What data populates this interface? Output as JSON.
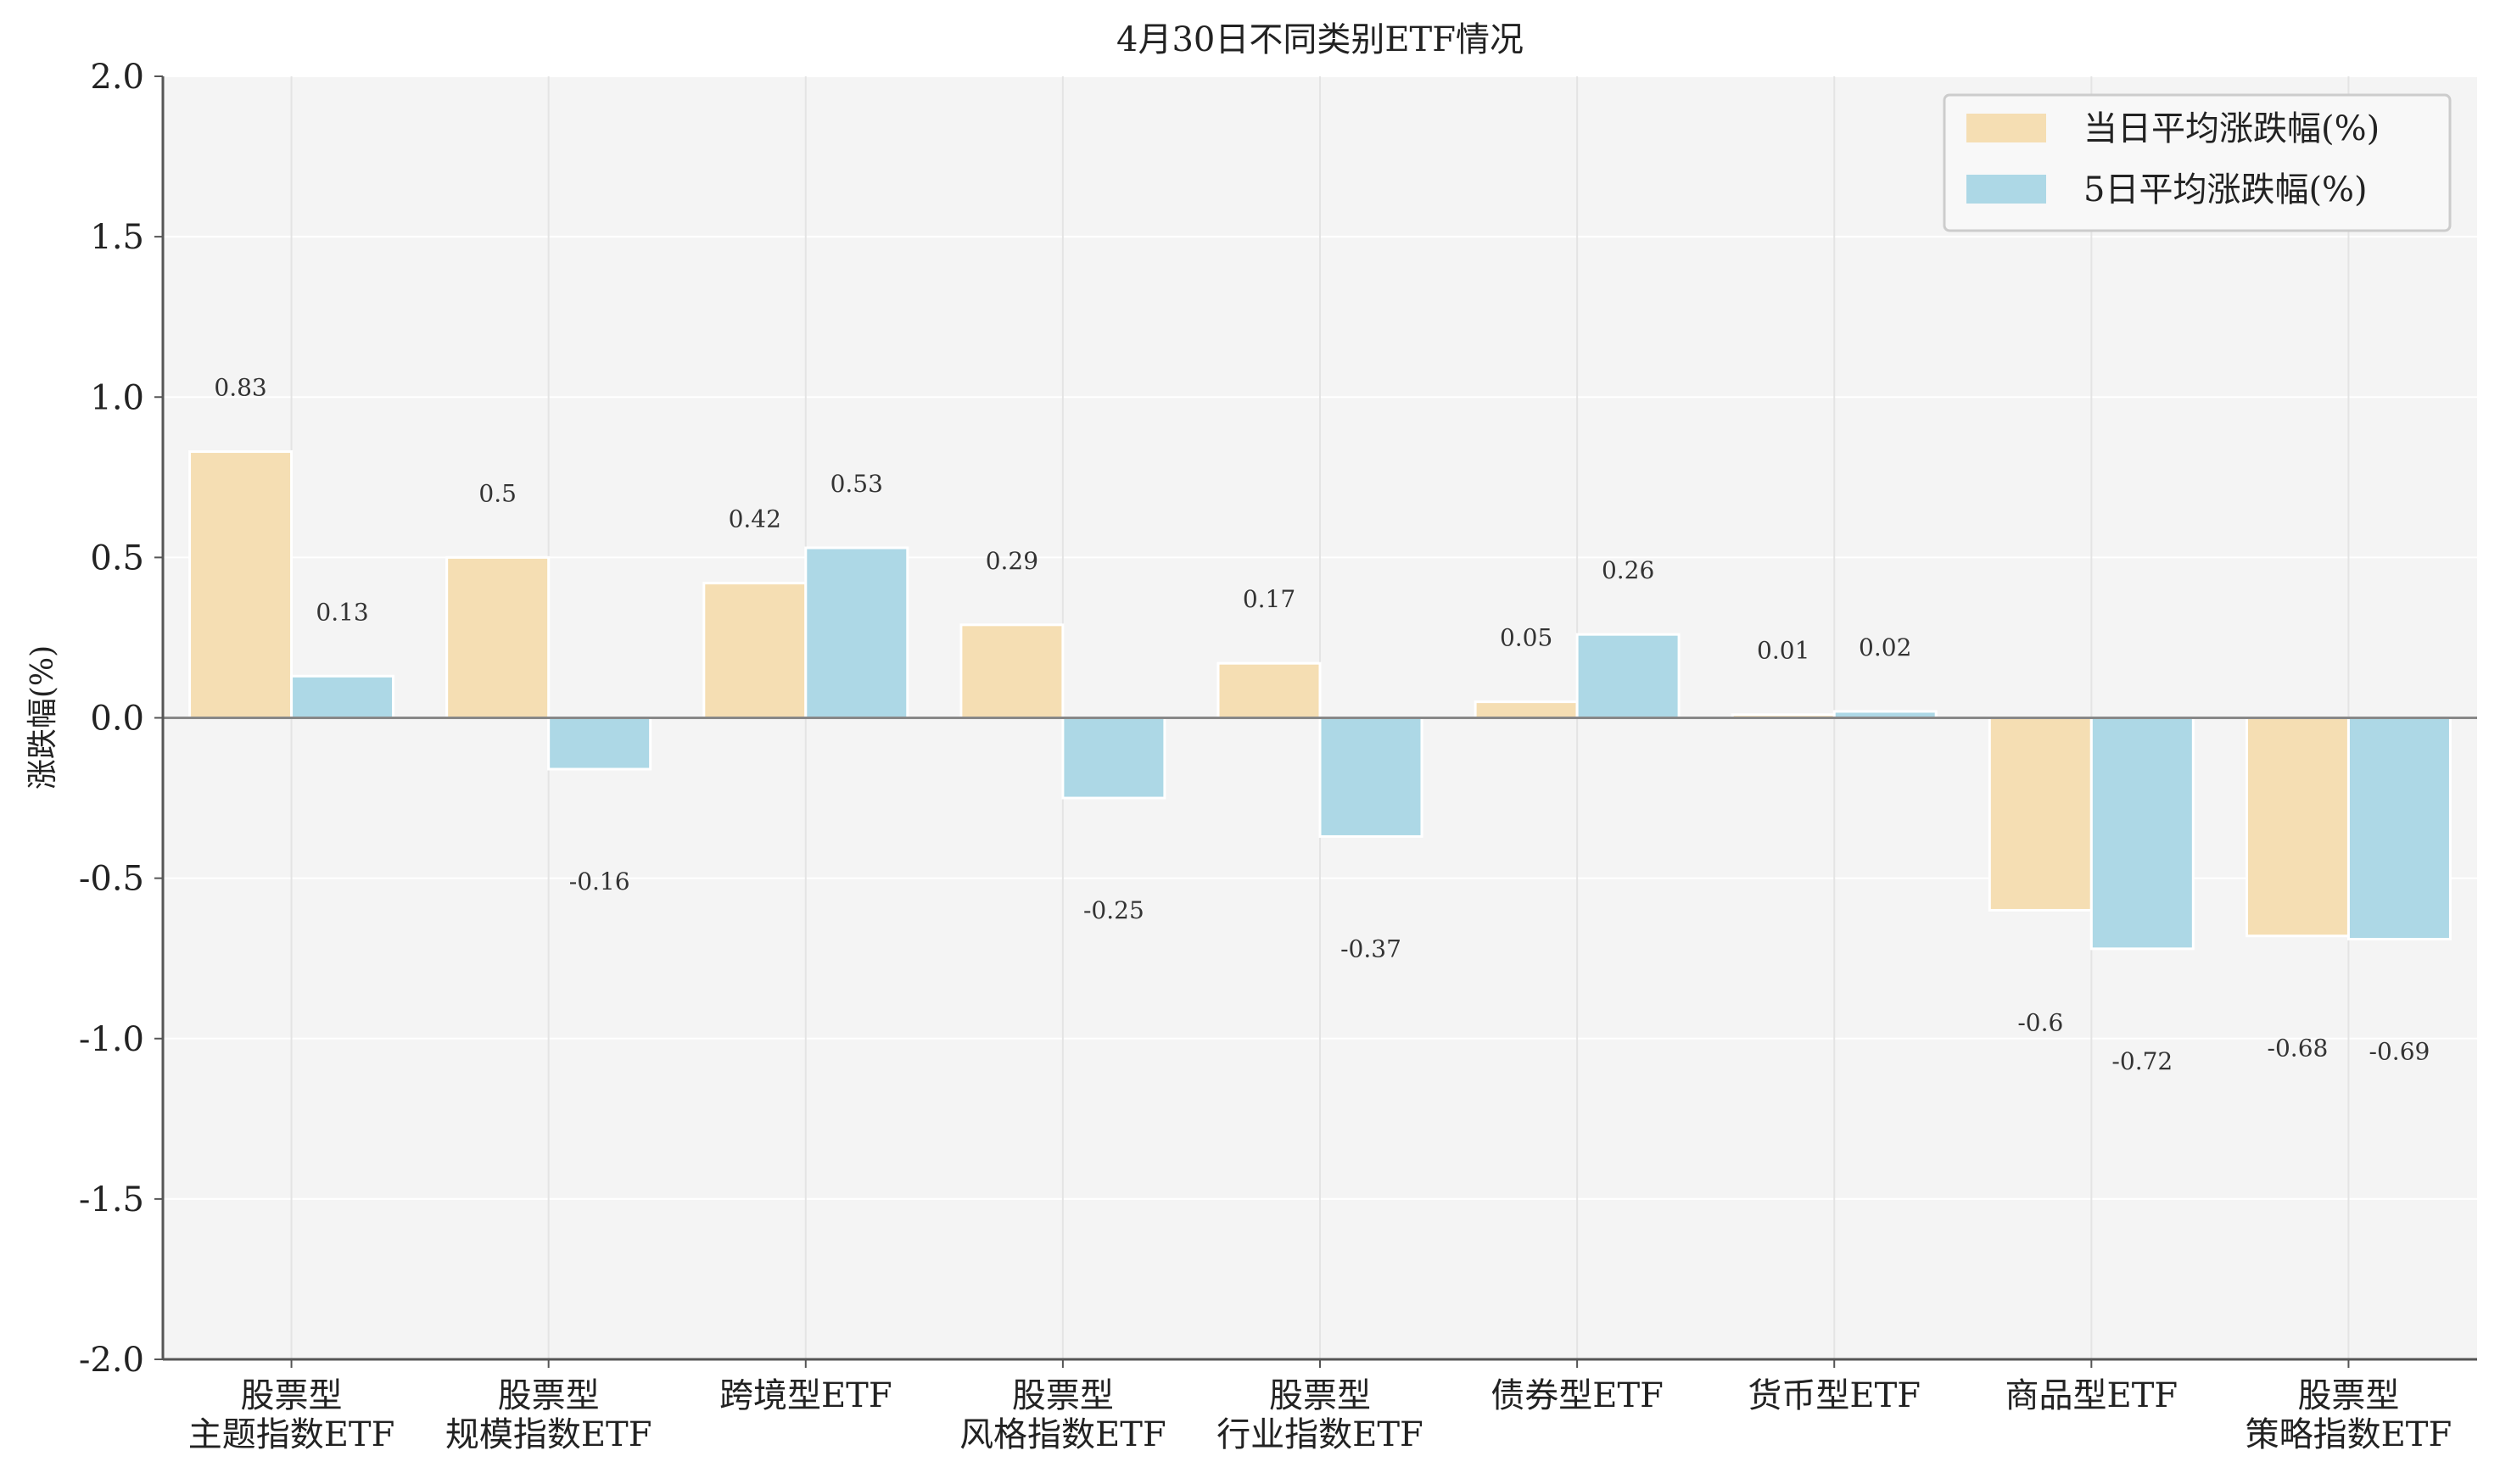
{
  "chart_data": {
    "type": "bar",
    "title": "4月30日不同类别ETF情况",
    "xlabel": "",
    "ylabel": "涨跌幅(%)",
    "ylim": [
      -2.0,
      2.0
    ],
    "yticks": [
      "2.0",
      "1.5",
      "1.0",
      "0.5",
      "0.0",
      "-0.5",
      "-1.0",
      "-1.5",
      "-2.0"
    ],
    "ytick_values": [
      2.0,
      1.5,
      1.0,
      0.5,
      0.0,
      -0.5,
      -1.0,
      -1.5,
      -2.0
    ],
    "grid": true,
    "legend_position": "top-right",
    "categories": [
      [
        "股票型",
        "主题指数ETF"
      ],
      [
        "股票型",
        "规模指数ETF"
      ],
      [
        "跨境型ETF"
      ],
      [
        "股票型",
        "风格指数ETF"
      ],
      [
        "股票型",
        "行业指数ETF"
      ],
      [
        "债券型ETF"
      ],
      [
        "货币型ETF"
      ],
      [
        "商品型ETF"
      ],
      [
        "股票型",
        "策略指数ETF"
      ]
    ],
    "series": [
      {
        "name": "当日平均涨跌幅(%)",
        "color": "#F5DEB3",
        "values": [
          0.83,
          0.5,
          0.42,
          0.29,
          0.17,
          0.05,
          0.01,
          -0.6,
          -0.68
        ],
        "labels": [
          "0.83",
          "0.5",
          "0.42",
          "0.29",
          "0.17",
          "0.05",
          "0.01",
          "-0.6",
          "-0.68"
        ]
      },
      {
        "name": "5日平均涨跌幅(%)",
        "color": "#ADD8E6",
        "values": [
          0.13,
          -0.16,
          0.53,
          -0.25,
          -0.37,
          0.26,
          0.02,
          -0.72,
          -0.69
        ],
        "labels": [
          "0.13",
          "-0.16",
          "0.53",
          "-0.25",
          "-0.37",
          "0.26",
          "0.02",
          "-0.72",
          "-0.69"
        ]
      }
    ]
  },
  "colors": {
    "plot_background": "#F4F4F4",
    "grid": "#FFFFFF",
    "axis": "#555555",
    "zero_line": "#888888",
    "text": "#222222"
  }
}
